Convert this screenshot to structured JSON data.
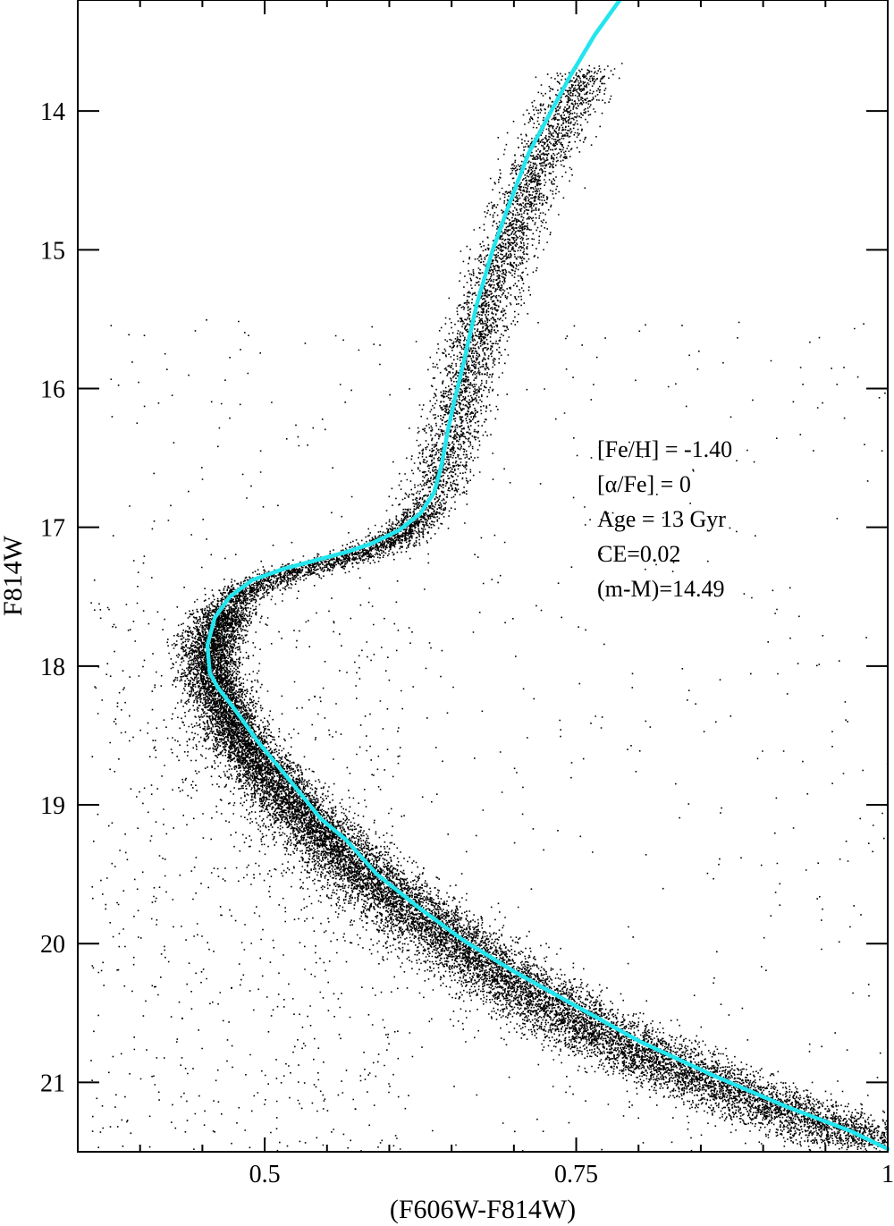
{
  "chart_data": {
    "type": "scatter",
    "title": "",
    "xlabel": "(F606W-F814W)",
    "ylabel": "F814W",
    "xlim": [
      0.35,
      1.0
    ],
    "ylim": [
      21.5,
      13.2
    ],
    "y_inverted": true,
    "grid": false,
    "xticks": [
      {
        "value": 0.5,
        "label": "0.5"
      },
      {
        "value": 0.75,
        "label": "0.75"
      },
      {
        "value": 1.0,
        "label": "1"
      }
    ],
    "yticks": [
      {
        "value": 14,
        "label": "14"
      },
      {
        "value": 15,
        "label": "15"
      },
      {
        "value": 16,
        "label": "16"
      },
      {
        "value": 17,
        "label": "17"
      },
      {
        "value": 18,
        "label": "18"
      },
      {
        "value": 19,
        "label": "19"
      },
      {
        "value": 20,
        "label": "20"
      },
      {
        "value": 21,
        "label": "21"
      }
    ],
    "annotations": [
      "[Fe/H] = -1.40",
      "[α/Fe] = 0",
      "Age = 13 Gyr",
      "CE=0.02",
      "(m-M)=14.49"
    ],
    "series": [
      {
        "type": "scatter",
        "color": "#000000",
        "ridge_line": [
          [
            0.76,
            13.7
          ],
          [
            0.74,
            14.0
          ],
          [
            0.72,
            14.35
          ],
          [
            0.7,
            14.8
          ],
          [
            0.685,
            15.2
          ],
          [
            0.67,
            15.6
          ],
          [
            0.658,
            16.0
          ],
          [
            0.648,
            16.4
          ],
          [
            0.64,
            16.7
          ],
          [
            0.625,
            16.92
          ],
          [
            0.605,
            17.08
          ],
          [
            0.58,
            17.18
          ],
          [
            0.555,
            17.25
          ],
          [
            0.53,
            17.3
          ],
          [
            0.505,
            17.37
          ],
          [
            0.485,
            17.45
          ],
          [
            0.468,
            17.6
          ],
          [
            0.457,
            17.8
          ],
          [
            0.456,
            18.0
          ],
          [
            0.462,
            18.2
          ],
          [
            0.48,
            18.5
          ],
          [
            0.505,
            18.8
          ],
          [
            0.535,
            19.1
          ],
          [
            0.57,
            19.4
          ],
          [
            0.61,
            19.7
          ],
          [
            0.655,
            20.0
          ],
          [
            0.705,
            20.3
          ],
          [
            0.76,
            20.6
          ],
          [
            0.82,
            20.85
          ],
          [
            0.885,
            21.1
          ],
          [
            0.95,
            21.3
          ],
          [
            1.0,
            21.45
          ]
        ]
      },
      {
        "type": "line",
        "color": "#22e5ee",
        "points": [
          [
            0.785,
            13.2
          ],
          [
            0.765,
            13.45
          ],
          [
            0.745,
            13.75
          ],
          [
            0.73,
            14.0
          ],
          [
            0.712,
            14.3
          ],
          [
            0.695,
            14.7
          ],
          [
            0.683,
            15.0
          ],
          [
            0.67,
            15.4
          ],
          [
            0.66,
            15.8
          ],
          [
            0.652,
            16.1
          ],
          [
            0.647,
            16.3
          ],
          [
            0.642,
            16.55
          ],
          [
            0.636,
            16.75
          ],
          [
            0.625,
            16.9
          ],
          [
            0.608,
            17.02
          ],
          [
            0.585,
            17.12
          ],
          [
            0.565,
            17.18
          ],
          [
            0.54,
            17.24
          ],
          [
            0.515,
            17.3
          ],
          [
            0.49,
            17.38
          ],
          [
            0.472,
            17.5
          ],
          [
            0.46,
            17.65
          ],
          [
            0.454,
            17.85
          ],
          [
            0.456,
            18.05
          ],
          [
            0.462,
            18.15
          ],
          [
            0.475,
            18.3
          ],
          [
            0.495,
            18.55
          ],
          [
            0.518,
            18.8
          ],
          [
            0.545,
            19.1
          ],
          [
            0.565,
            19.25
          ],
          [
            0.59,
            19.5
          ],
          [
            0.625,
            19.75
          ],
          [
            0.66,
            19.98
          ],
          [
            0.7,
            20.2
          ],
          [
            0.75,
            20.45
          ],
          [
            0.8,
            20.7
          ],
          [
            0.86,
            20.95
          ],
          [
            0.92,
            21.18
          ],
          [
            0.97,
            21.35
          ],
          [
            1.0,
            21.48
          ]
        ]
      }
    ]
  }
}
